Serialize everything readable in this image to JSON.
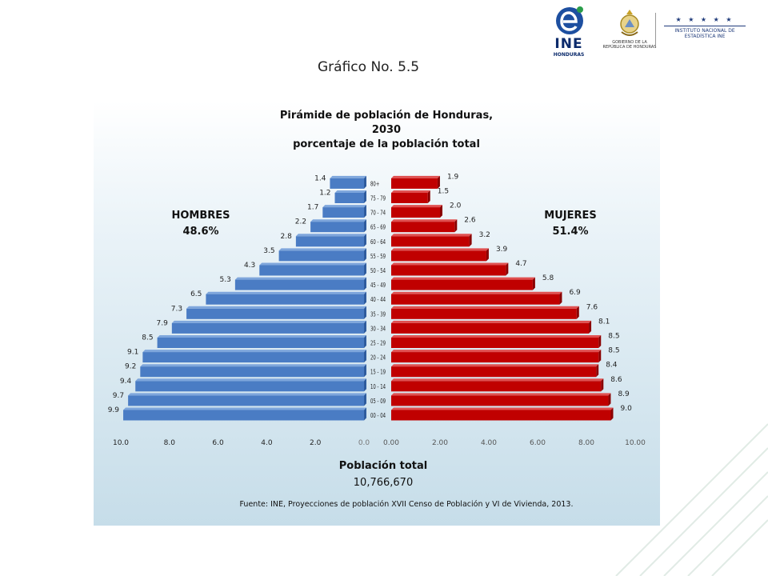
{
  "slide": {
    "title": "Gráfico No. 5.5"
  },
  "logos": {
    "ine": {
      "text": "INE",
      "subtext": "HONDURAS"
    },
    "gobierno": {
      "text": "GOBIERNO DE LA REPÚBLICA DE HONDURAS"
    },
    "instituto": {
      "stars": "★ ★ ★ ★ ★",
      "text": "INSTITUTO NACIONAL DE ESTADÍSTICA INE"
    }
  },
  "chart_data": {
    "type": "bar",
    "orientation": "horizontal-pyramid",
    "title": [
      "Pirámide de población de Honduras,",
      "2030",
      "porcentaje de la población total"
    ],
    "categories": [
      "00 - 04",
      "05 - 09",
      "10 - 14",
      "15 - 19",
      "20 - 24",
      "25 - 29",
      "30 - 34",
      "35 - 39",
      "40 - 44",
      "45 - 49",
      "50 - 54",
      "55 - 59",
      "60 - 64",
      "65 - 69",
      "70 - 74",
      "75 - 79",
      "80+"
    ],
    "series": [
      {
        "name": "HOMBRES",
        "share": "48.6%",
        "color": "#4a7cc4",
        "values": [
          9.9,
          9.7,
          9.4,
          9.2,
          9.1,
          8.5,
          7.9,
          7.3,
          6.5,
          5.3,
          4.3,
          3.5,
          2.8,
          2.2,
          1.7,
          1.2,
          1.4
        ],
        "labels": [
          "9.9",
          "9.7",
          "9.4",
          "9.2",
          "9.1",
          "8.5",
          "7.9",
          "7.3",
          "6.5",
          "5.3",
          "4.3",
          "3.5",
          "2.8",
          "2.2",
          "1.7",
          "1.2",
          "1.4"
        ],
        "ticks": [
          "10.0",
          "8.0",
          "6.0",
          "4.0",
          "2.0",
          "0.0"
        ]
      },
      {
        "name": "MUJERES",
        "share": "51.4%",
        "color": "#c00000",
        "values": [
          9.0,
          8.9,
          8.6,
          8.4,
          8.5,
          8.5,
          8.1,
          7.6,
          6.9,
          5.8,
          4.7,
          3.9,
          3.2,
          2.6,
          2.0,
          1.5,
          1.9
        ],
        "labels": [
          "9.0",
          "8.9",
          "8.6",
          "8.4",
          "8.5",
          "8.5",
          "8.1",
          "7.6",
          "6.9",
          "5.8",
          "4.7",
          "3.9",
          "3.2",
          "2.6",
          "2.0",
          "1.5",
          "1.9"
        ],
        "ticks": [
          "0.00",
          "2.00",
          "4.00",
          "6.00",
          "8.00",
          "10.00"
        ]
      }
    ],
    "xlim": [
      0,
      10
    ],
    "grid": false,
    "footer": {
      "label": "Población total",
      "value": "10,766,670",
      "source": "Fuente: INE, Proyecciones de población XVII Censo de Población y VI de Vivienda, 2013."
    }
  }
}
